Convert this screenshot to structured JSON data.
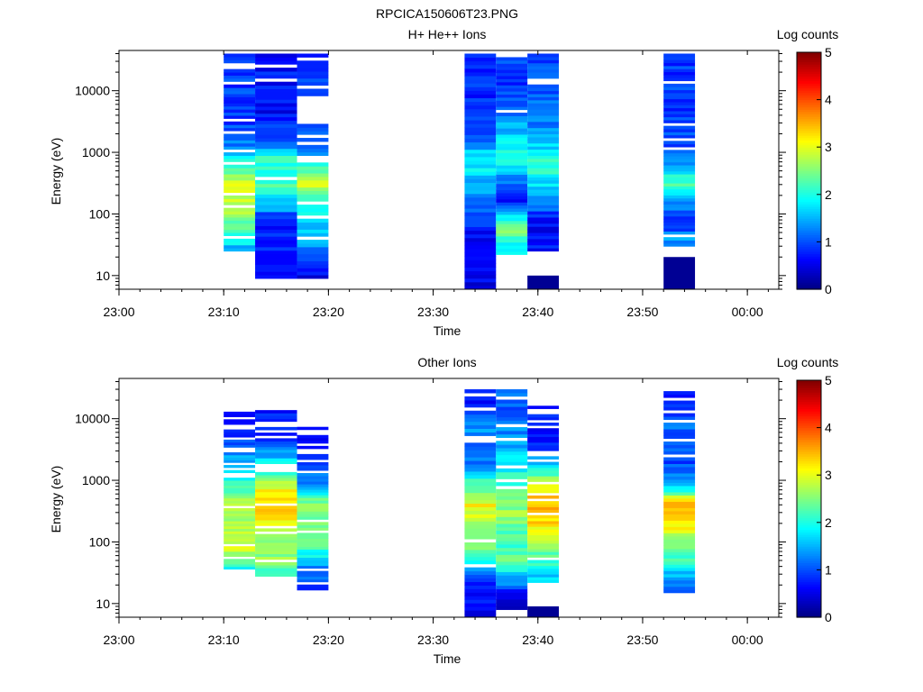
{
  "figure_title": "RPCICA150606T23.PNG",
  "colorbar": {
    "label": "Log counts",
    "ticks": [
      "0",
      "1",
      "2",
      "3",
      "4",
      "5"
    ],
    "range": [
      0,
      5
    ],
    "colormap": "jet"
  },
  "chart_data": [
    {
      "type": "heatmap",
      "title": "H+ He++ Ions",
      "xlabel": "Time",
      "ylabel": "Energy (eV)",
      "x_ticks": [
        "23:00",
        "23:10",
        "23:20",
        "23:30",
        "23:40",
        "23:50",
        "00:00"
      ],
      "y_ticks": [
        "10",
        "100",
        "1000",
        "10000"
      ],
      "y_scale": "log",
      "ylim": [
        6,
        45000
      ],
      "xlim": [
        "23:00",
        "00:03"
      ],
      "columns": [
        {
          "start": "23:10",
          "end": "23:13",
          "profile": [
            [
              10000,
              0.9
            ],
            [
              3000,
              0.9
            ],
            [
              1000,
              1.4
            ],
            [
              600,
              2.2
            ],
            [
              300,
              2.9
            ],
            [
              100,
              2.7
            ],
            [
              60,
              2.3
            ],
            [
              30,
              1.6
            ]
          ],
          "e_min": 25,
          "e_max": 40000,
          "gap_fraction": 0.35
        },
        {
          "start": "23:13",
          "end": "23:17",
          "profile": [
            [
              20000,
              0.7
            ],
            [
              5000,
              0.6
            ],
            [
              1500,
              1.0
            ],
            [
              800,
              2.1
            ],
            [
              300,
              2.2
            ],
            [
              120,
              1.4
            ],
            [
              80,
              0.7
            ],
            [
              30,
              0.9
            ],
            [
              10,
              0.6
            ]
          ],
          "e_min": 9,
          "e_max": 40000,
          "gap_fraction": 0.08
        },
        {
          "start": "23:17",
          "end": "23:20",
          "profile": [
            [
              10000,
              0.9
            ],
            [
              3000,
              0.9
            ],
            [
              1000,
              1.2
            ],
            [
              600,
              2.0
            ],
            [
              300,
              2.9
            ],
            [
              150,
              2.1
            ],
            [
              80,
              1.7
            ],
            [
              40,
              1.5
            ],
            [
              10,
              0.6
            ]
          ],
          "e_min": 9,
          "e_max": 40000,
          "gap_fraction": 0.45
        },
        {
          "start": "23:33",
          "end": "23:36",
          "profile": [
            [
              10000,
              0.8
            ],
            [
              3000,
              0.9
            ],
            [
              1500,
              1.2
            ],
            [
              800,
              2.0
            ],
            [
              400,
              1.6
            ],
            [
              150,
              1.3
            ],
            [
              90,
              0.9
            ],
            [
              40,
              0.6
            ],
            [
              10,
              0.5
            ]
          ],
          "e_min": 5,
          "e_max": 40000,
          "gap_fraction": 0.05
        },
        {
          "start": "23:36",
          "end": "23:39",
          "profile": [
            [
              10000,
              0.9
            ],
            [
              3000,
              1.4
            ],
            [
              1000,
              2.1
            ],
            [
              600,
              1.7
            ],
            [
              300,
              1.2
            ],
            [
              150,
              0.7
            ],
            [
              100,
              1.6
            ],
            [
              60,
              2.6
            ],
            [
              30,
              1.8
            ]
          ],
          "e_min": 22,
          "e_max": 35000,
          "gap_fraction": 0.12
        },
        {
          "start": "23:39",
          "end": "23:42",
          "profile": [
            [
              20000,
              1.0
            ],
            [
              5000,
              1.1
            ],
            [
              1500,
              1.6
            ],
            [
              600,
              2.2
            ],
            [
              300,
              1.7
            ],
            [
              150,
              1.3
            ],
            [
              80,
              0.6
            ],
            [
              40,
              0.7
            ]
          ],
          "e_min": 25,
          "e_max": 40000,
          "gap_fraction": 0.02,
          "low_cap": [
            5,
            10
          ]
        },
        {
          "start": "23:52",
          "end": "23:55",
          "profile": [
            [
              10000,
              0.9
            ],
            [
              3000,
              0.9
            ],
            [
              1000,
              1.1
            ],
            [
              500,
              1.7
            ],
            [
              300,
              2.4
            ],
            [
              150,
              1.4
            ],
            [
              80,
              0.8
            ],
            [
              40,
              1.3
            ]
          ],
          "e_min": 30,
          "e_max": 40000,
          "gap_fraction": 0.1,
          "low_cap": [
            5,
            20
          ]
        }
      ]
    },
    {
      "type": "heatmap",
      "title": "Other Ions",
      "xlabel": "Time",
      "ylabel": "Energy (eV)",
      "x_ticks": [
        "23:00",
        "23:10",
        "23:20",
        "23:30",
        "23:40",
        "23:50",
        "00:00"
      ],
      "y_ticks": [
        "10",
        "100",
        "1000",
        "10000"
      ],
      "y_scale": "log",
      "ylim": [
        6,
        45000
      ],
      "xlim": [
        "23:00",
        "00:03"
      ],
      "columns": [
        {
          "start": "23:10",
          "end": "23:13",
          "profile": [
            [
              12000,
              0.7
            ],
            [
              4000,
              1.0
            ],
            [
              1500,
              1.7
            ],
            [
              500,
              2.6
            ],
            [
              200,
              2.8
            ],
            [
              80,
              3.0
            ],
            [
              40,
              2.0
            ]
          ],
          "e_min": 30,
          "e_max": 13000,
          "gap_fraction": 0.3
        },
        {
          "start": "23:13",
          "end": "23:17",
          "profile": [
            [
              20000,
              0.6
            ],
            [
              5000,
              0.8
            ],
            [
              1500,
              2.0
            ],
            [
              700,
              3.2
            ],
            [
              300,
              3.6
            ],
            [
              100,
              2.4
            ],
            [
              50,
              2.6
            ],
            [
              30,
              2.0
            ]
          ],
          "e_min": 25,
          "e_max": 21000,
          "gap_fraction": 0.35
        },
        {
          "start": "23:17",
          "end": "23:20",
          "profile": [
            [
              10000,
              0.5
            ],
            [
              3000,
              0.6
            ],
            [
              1000,
              1.2
            ],
            [
              500,
              2.4
            ],
            [
              200,
              2.5
            ],
            [
              80,
              2.2
            ],
            [
              40,
              1.4
            ],
            [
              20,
              0.9
            ]
          ],
          "e_min": 15,
          "e_max": 10000,
          "gap_fraction": 0.5
        },
        {
          "start": "23:33",
          "end": "23:36",
          "profile": [
            [
              25000,
              0.6
            ],
            [
              8000,
              1.4
            ],
            [
              2000,
              1.1
            ],
            [
              800,
              2.4
            ],
            [
              400,
              3.1
            ],
            [
              200,
              2.8
            ],
            [
              80,
              2.4
            ],
            [
              40,
              1.7
            ],
            [
              20,
              0.6
            ]
          ],
          "e_min": 5,
          "e_max": 30000,
          "gap_fraction": 0.2
        },
        {
          "start": "23:36",
          "end": "23:39",
          "profile": [
            [
              15000,
              1.1
            ],
            [
              5000,
              1.3
            ],
            [
              2000,
              1.8
            ],
            [
              800,
              2.2
            ],
            [
              300,
              2.6
            ],
            [
              100,
              2.1
            ],
            [
              50,
              2.3
            ],
            [
              25,
              1.4
            ],
            [
              10,
              0.3
            ]
          ],
          "e_min": 8,
          "e_max": 30000,
          "gap_fraction": 0.12
        },
        {
          "start": "23:39",
          "end": "23:42",
          "profile": [
            [
              15000,
              0.7
            ],
            [
              3000,
              0.8
            ],
            [
              1500,
              2.0
            ],
            [
              600,
              3.3
            ],
            [
              300,
              3.6
            ],
            [
              120,
              2.7
            ],
            [
              50,
              2.2
            ],
            [
              25,
              1.6
            ]
          ],
          "e_min": 22,
          "e_max": 18000,
          "gap_fraction": 0.25,
          "low_cap": [
            5,
            9
          ]
        },
        {
          "start": "23:52",
          "end": "23:55",
          "profile": [
            [
              25000,
              0.7
            ],
            [
              8000,
              1.1
            ],
            [
              2000,
              0.9
            ],
            [
              800,
              1.6
            ],
            [
              400,
              3.6
            ],
            [
              200,
              3.3
            ],
            [
              100,
              2.6
            ],
            [
              40,
              1.9
            ],
            [
              20,
              1.2
            ]
          ],
          "e_min": 15,
          "e_max": 28000,
          "gap_fraction": 0.25
        }
      ]
    }
  ]
}
